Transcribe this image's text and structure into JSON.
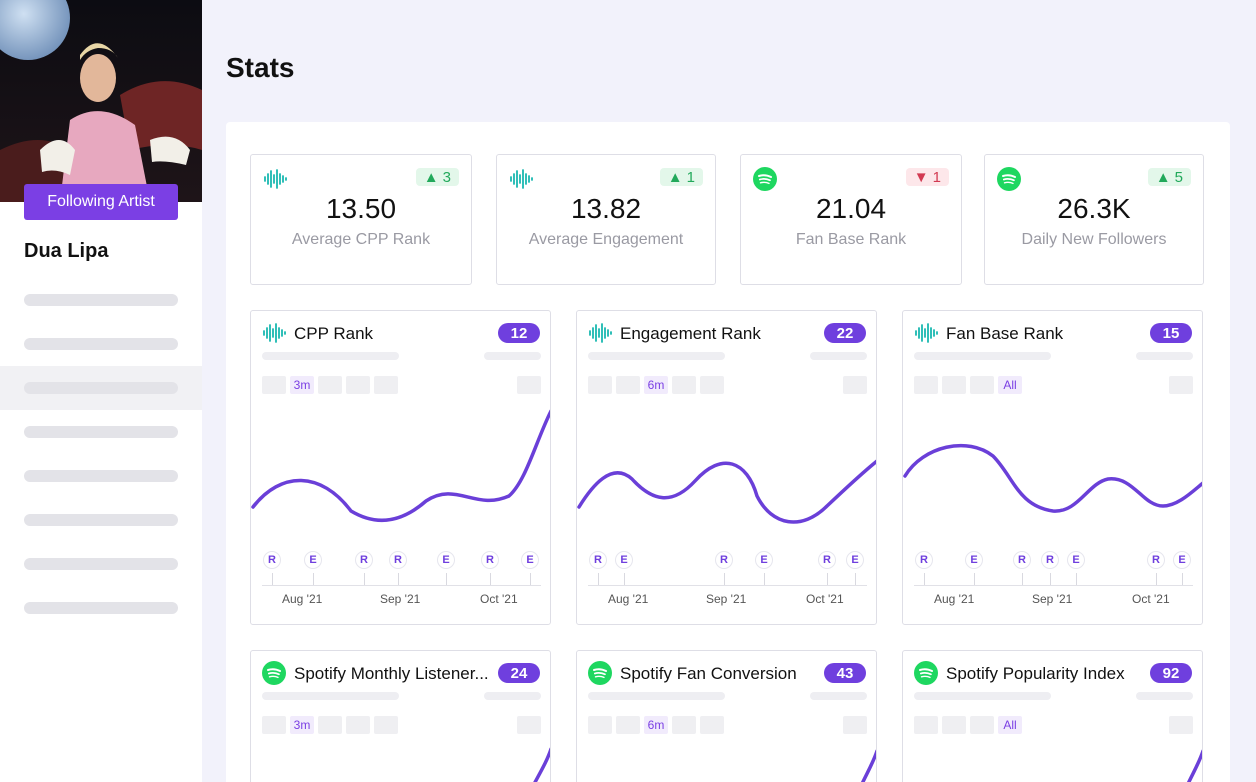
{
  "sidebar": {
    "follow_label": "Following Artist",
    "artist_name": "Dua Lipa"
  },
  "page": {
    "title": "Stats"
  },
  "stats": [
    {
      "icon": "waveform-icon",
      "delta": "3",
      "direction": "up",
      "value": "13.50",
      "label": "Average CPP Rank"
    },
    {
      "icon": "waveform-icon",
      "delta": "1",
      "direction": "up",
      "value": "13.82",
      "label": "Average Engagement"
    },
    {
      "icon": "spotify-icon",
      "delta": "1",
      "direction": "down",
      "value": "21.04",
      "label": "Fan Base Rank"
    },
    {
      "icon": "spotify-icon",
      "delta": "5",
      "direction": "up",
      "value": "26.3K",
      "label": "Daily New Followers"
    }
  ],
  "charts": [
    {
      "icon": "waveform-icon",
      "title": "CPP Rank",
      "badge": "12",
      "range": "3m",
      "months": [
        "Aug '21",
        "Sep '21",
        "Oct '21"
      ]
    },
    {
      "icon": "waveform-icon",
      "title": "Engagement Rank",
      "badge": "22",
      "range": "6m",
      "months": [
        "Aug '21",
        "Sep '21",
        "Oct '21"
      ]
    },
    {
      "icon": "waveform-icon",
      "title": "Fan Base Rank",
      "badge": "15",
      "range": "All",
      "months": [
        "Aug '21",
        "Sep '21",
        "Oct '21"
      ]
    },
    {
      "icon": "spotify-icon",
      "title": "Spotify Monthly Listener...",
      "badge": "24",
      "range": "3m"
    },
    {
      "icon": "spotify-icon",
      "title": "Spotify Fan Conversion",
      "badge": "43",
      "range": "6m"
    },
    {
      "icon": "spotify-icon",
      "title": "Spotify Popularity Index",
      "badge": "92",
      "range": "All"
    }
  ],
  "markers": [
    [
      "R",
      "E",
      "R",
      "R",
      "E",
      "R",
      "E"
    ],
    [
      "R",
      "E",
      "R",
      "E",
      "R",
      "E"
    ],
    [
      "R",
      "E",
      "R",
      "R",
      "E",
      "R",
      "E"
    ]
  ],
  "colors": {
    "accent": "#7b3fe4",
    "line": "#6a3fd8",
    "up": "#22a95b",
    "down": "#d23a52",
    "waveform": "#19b8b0",
    "spotify": "#1ed760"
  }
}
